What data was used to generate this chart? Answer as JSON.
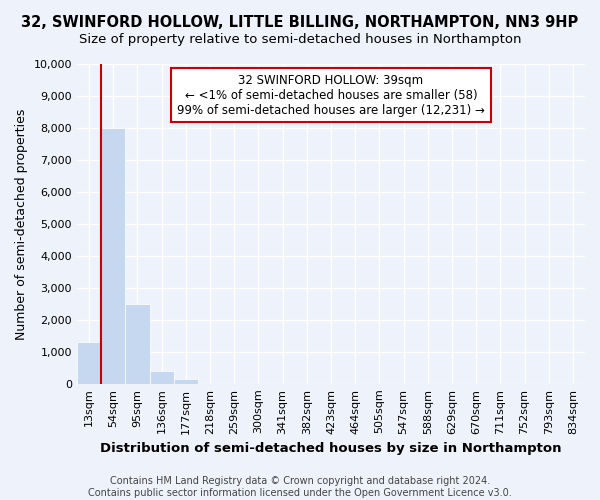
{
  "title": "32, SWINFORD HOLLOW, LITTLE BILLING, NORTHAMPTON, NN3 9HP",
  "subtitle": "Size of property relative to semi-detached houses in Northampton",
  "xlabel": "Distribution of semi-detached houses by size in Northampton",
  "ylabel": "Number of semi-detached properties",
  "footer_line1": "Contains HM Land Registry data © Crown copyright and database right 2024.",
  "footer_line2": "Contains public sector information licensed under the Open Government Licence v3.0.",
  "categories": [
    "13sqm",
    "54sqm",
    "95sqm",
    "136sqm",
    "177sqm",
    "218sqm",
    "259sqm",
    "300sqm",
    "341sqm",
    "382sqm",
    "423sqm",
    "464sqm",
    "505sqm",
    "547sqm",
    "588sqm",
    "629sqm",
    "670sqm",
    "711sqm",
    "752sqm",
    "793sqm",
    "834sqm"
  ],
  "values": [
    1300,
    8000,
    2500,
    400,
    150,
    0,
    0,
    0,
    0,
    0,
    0,
    0,
    0,
    0,
    0,
    0,
    0,
    0,
    0,
    0,
    0
  ],
  "bar_color": "#c5d8f0",
  "bar_edge_color": "#c5d8f0",
  "red_line_color": "#cc0000",
  "red_line_x": 0.5,
  "ylim": [
    0,
    10000
  ],
  "yticks": [
    0,
    1000,
    2000,
    3000,
    4000,
    5000,
    6000,
    7000,
    8000,
    9000,
    10000
  ],
  "annotation_text": "32 SWINFORD HOLLOW: 39sqm\n← <1% of semi-detached houses are smaller (58)\n99% of semi-detached houses are larger (12,231) →",
  "annotation_box_color": "#ffffff",
  "annotation_box_edge": "#cc0000",
  "background_color": "#eef2fb",
  "plot_bg_color": "#eef2fb",
  "grid_color": "#ffffff",
  "title_fontsize": 10.5,
  "subtitle_fontsize": 9.5,
  "tick_fontsize": 8,
  "ylabel_fontsize": 9,
  "xlabel_fontsize": 9.5,
  "footer_fontsize": 7,
  "annotation_fontsize": 8.5
}
